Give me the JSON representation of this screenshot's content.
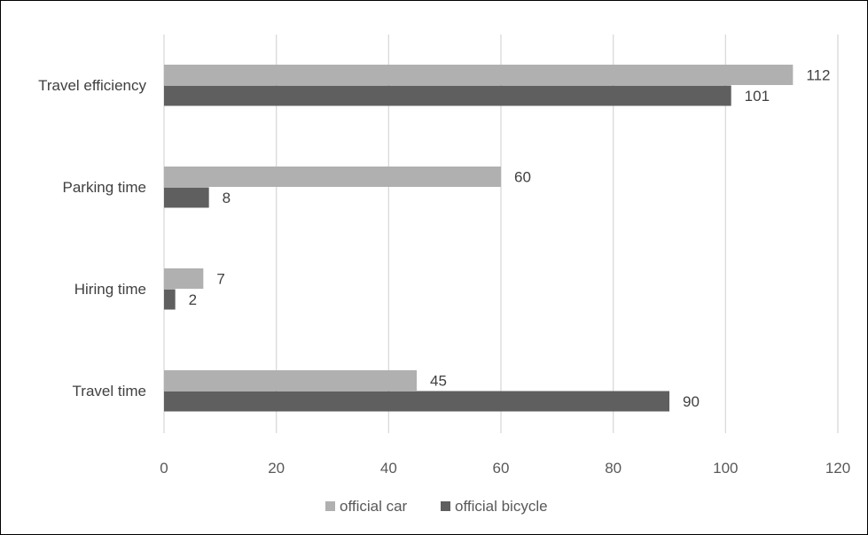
{
  "chart_data": {
    "type": "bar",
    "orientation": "horizontal",
    "title": "",
    "xlabel": "",
    "ylabel": "",
    "categories": [
      "Travel efficiency",
      "Parking time",
      "Hiring time",
      "Travel time"
    ],
    "series": [
      {
        "name": "official car",
        "color": "#b0b0b0",
        "values": [
          112,
          60,
          7,
          45
        ]
      },
      {
        "name": "official bicycle",
        "color": "#5f5f5f",
        "values": [
          101,
          8,
          2,
          90
        ]
      }
    ],
    "xlim": [
      0,
      120
    ],
    "xticks": [
      0,
      20,
      40,
      60,
      80,
      100,
      120
    ],
    "grid": "vertical",
    "data_labels": true,
    "legend_position": "bottom",
    "colors": {
      "gridline": "#d9d9d9",
      "frame": "#000000",
      "text": "#404040"
    }
  }
}
